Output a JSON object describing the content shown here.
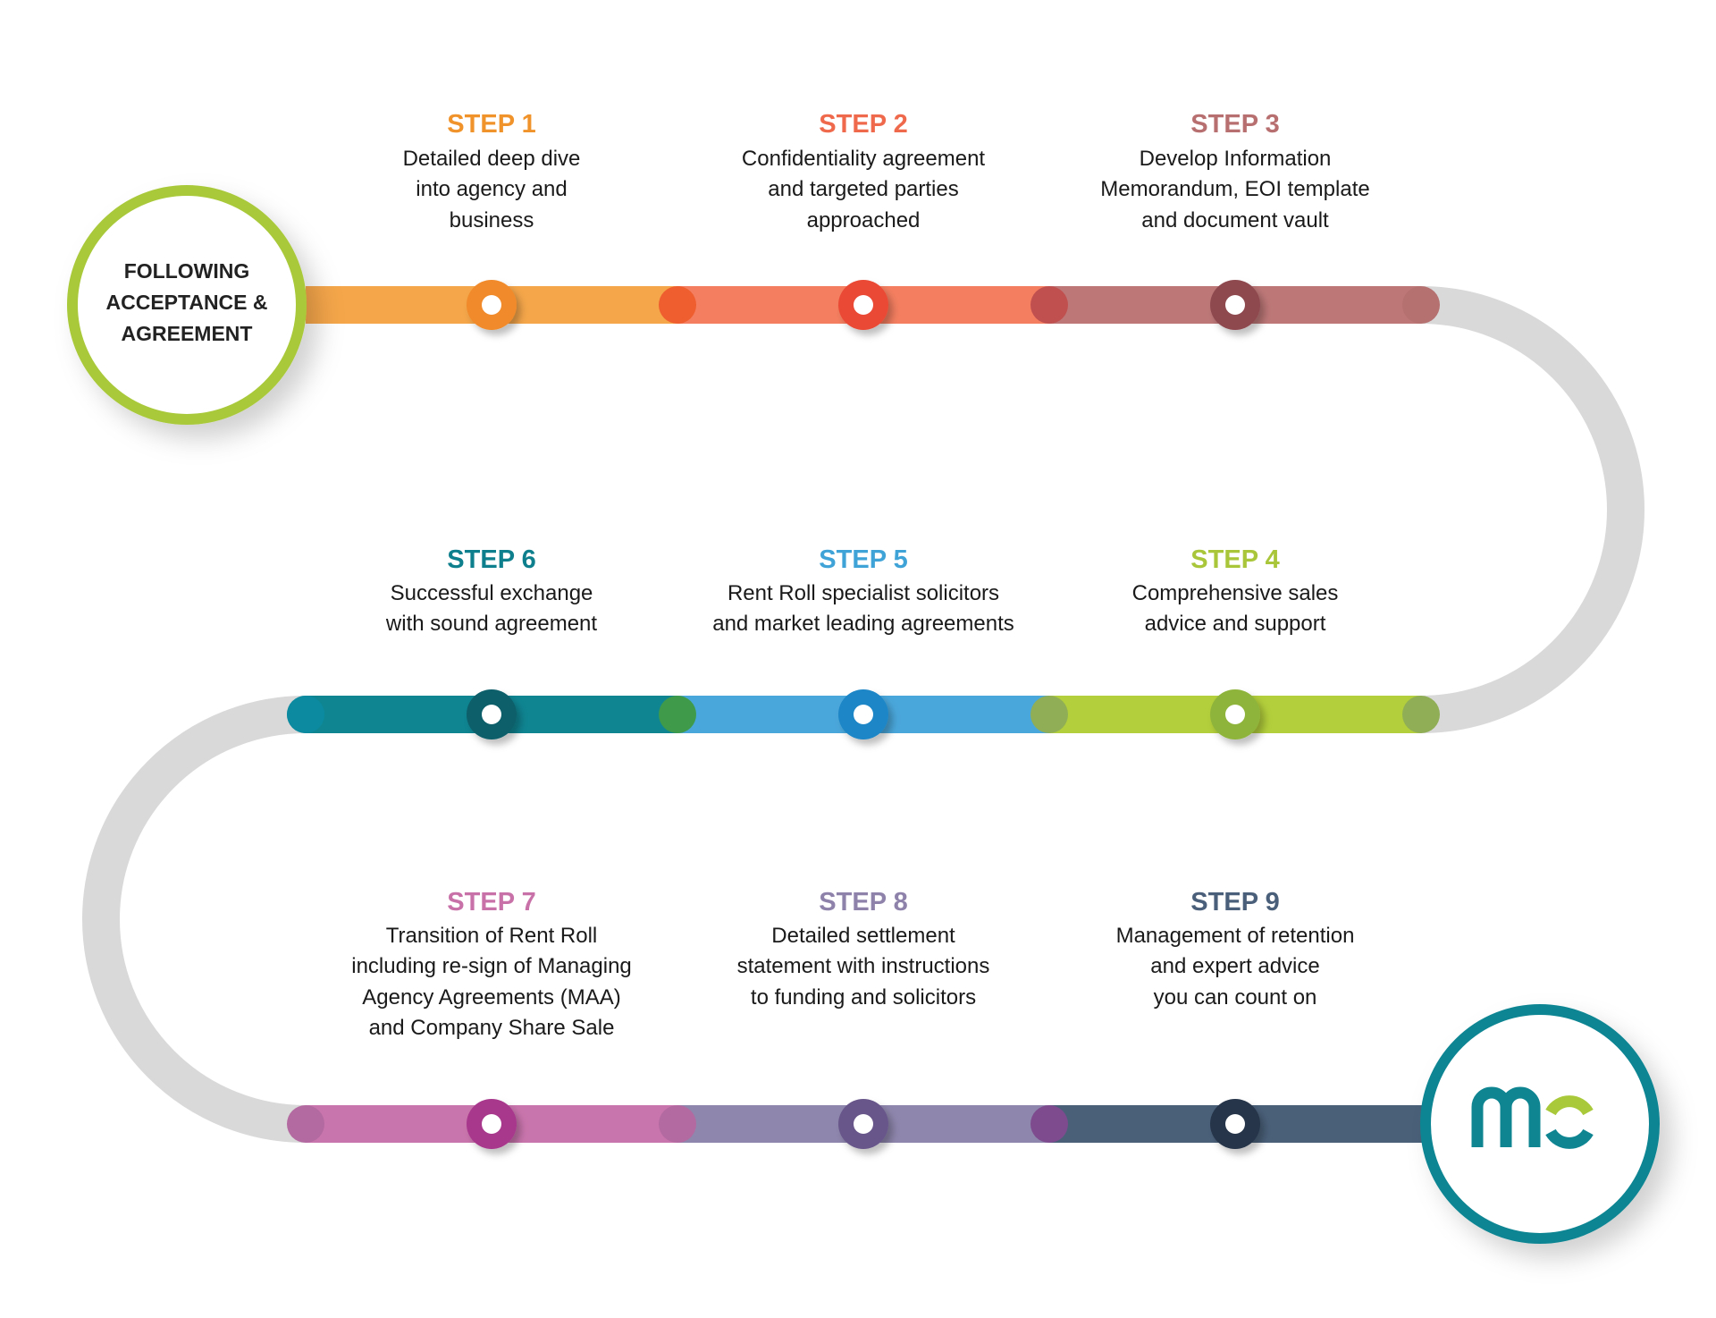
{
  "start": {
    "lines": [
      "FOLLOWING",
      "ACCEPTANCE &",
      "AGREEMENT"
    ],
    "ring_color": "#a9c93a"
  },
  "logo": {
    "text": "mc",
    "ring_color": "#0f8592",
    "colors": [
      "#0f8592",
      "#a9c93a"
    ]
  },
  "path_color": "#d9d9d9",
  "steps": [
    {
      "label": "STEP 1",
      "lines": [
        "Detailed deep dive",
        "into agency and",
        "business"
      ],
      "text_color": "#f0932b",
      "track_color": "#f5a64a",
      "node_color": "#f08a2a",
      "joint_color": "#ee5e2e"
    },
    {
      "label": "STEP 2",
      "lines": [
        "Confidentiality agreement",
        "and targeted parties",
        "approached"
      ],
      "text_color": "#ef6a4c",
      "track_color": "#f47e60",
      "node_color": "#ea4a35",
      "joint_color": "#c0504f"
    },
    {
      "label": "STEP 3",
      "lines": [
        "Develop Information",
        "Memorandum, EOI template",
        "and document vault"
      ],
      "text_color": "#b86f6f",
      "track_color": "#bd7777",
      "node_color": "#8e4a50",
      "joint_color": "#b57070"
    },
    {
      "label": "STEP 4",
      "lines": [
        "Comprehensive sales",
        "advice and support"
      ],
      "text_color": "#a9c63a",
      "track_color": "#b3cf3b",
      "node_color": "#8fb43a",
      "joint_color": "#8fae55"
    },
    {
      "label": "STEP 5",
      "lines": [
        "Rent Roll specialist solicitors",
        "and market leading agreements"
      ],
      "text_color": "#3fa3d8",
      "track_color": "#4aa7db",
      "node_color": "#1f86c6",
      "joint_color": "#3f9b49"
    },
    {
      "label": "STEP 6",
      "lines": [
        "Successful exchange",
        "with sound agreement"
      ],
      "text_color": "#0e7f8c",
      "track_color": "#0f8592",
      "node_color": "#0c5e6a",
      "joint_color": "#0b8aa0"
    },
    {
      "label": "STEP 7",
      "lines": [
        "Transition of Rent Roll",
        "including re-sign of Managing",
        "Agency Agreements (MAA)",
        "and Company Share Sale"
      ],
      "text_color": "#c870a8",
      "track_color": "#c975ad",
      "node_color": "#a8388c",
      "joint_color": "#b36aa0"
    },
    {
      "label": "STEP 8",
      "lines": [
        "Detailed settlement",
        "statement with instructions",
        "to funding and solicitors"
      ],
      "text_color": "#8e82ab",
      "track_color": "#8e86ac",
      "node_color": "#67578a",
      "joint_color": "#7d4b8e"
    },
    {
      "label": "STEP 9",
      "lines": [
        "Management of retention",
        "and expert advice",
        "you can count on"
      ],
      "text_color": "#4a5f7a",
      "track_color": "#4a6079",
      "node_color": "#25344a",
      "joint_color": "#34455f"
    }
  ]
}
